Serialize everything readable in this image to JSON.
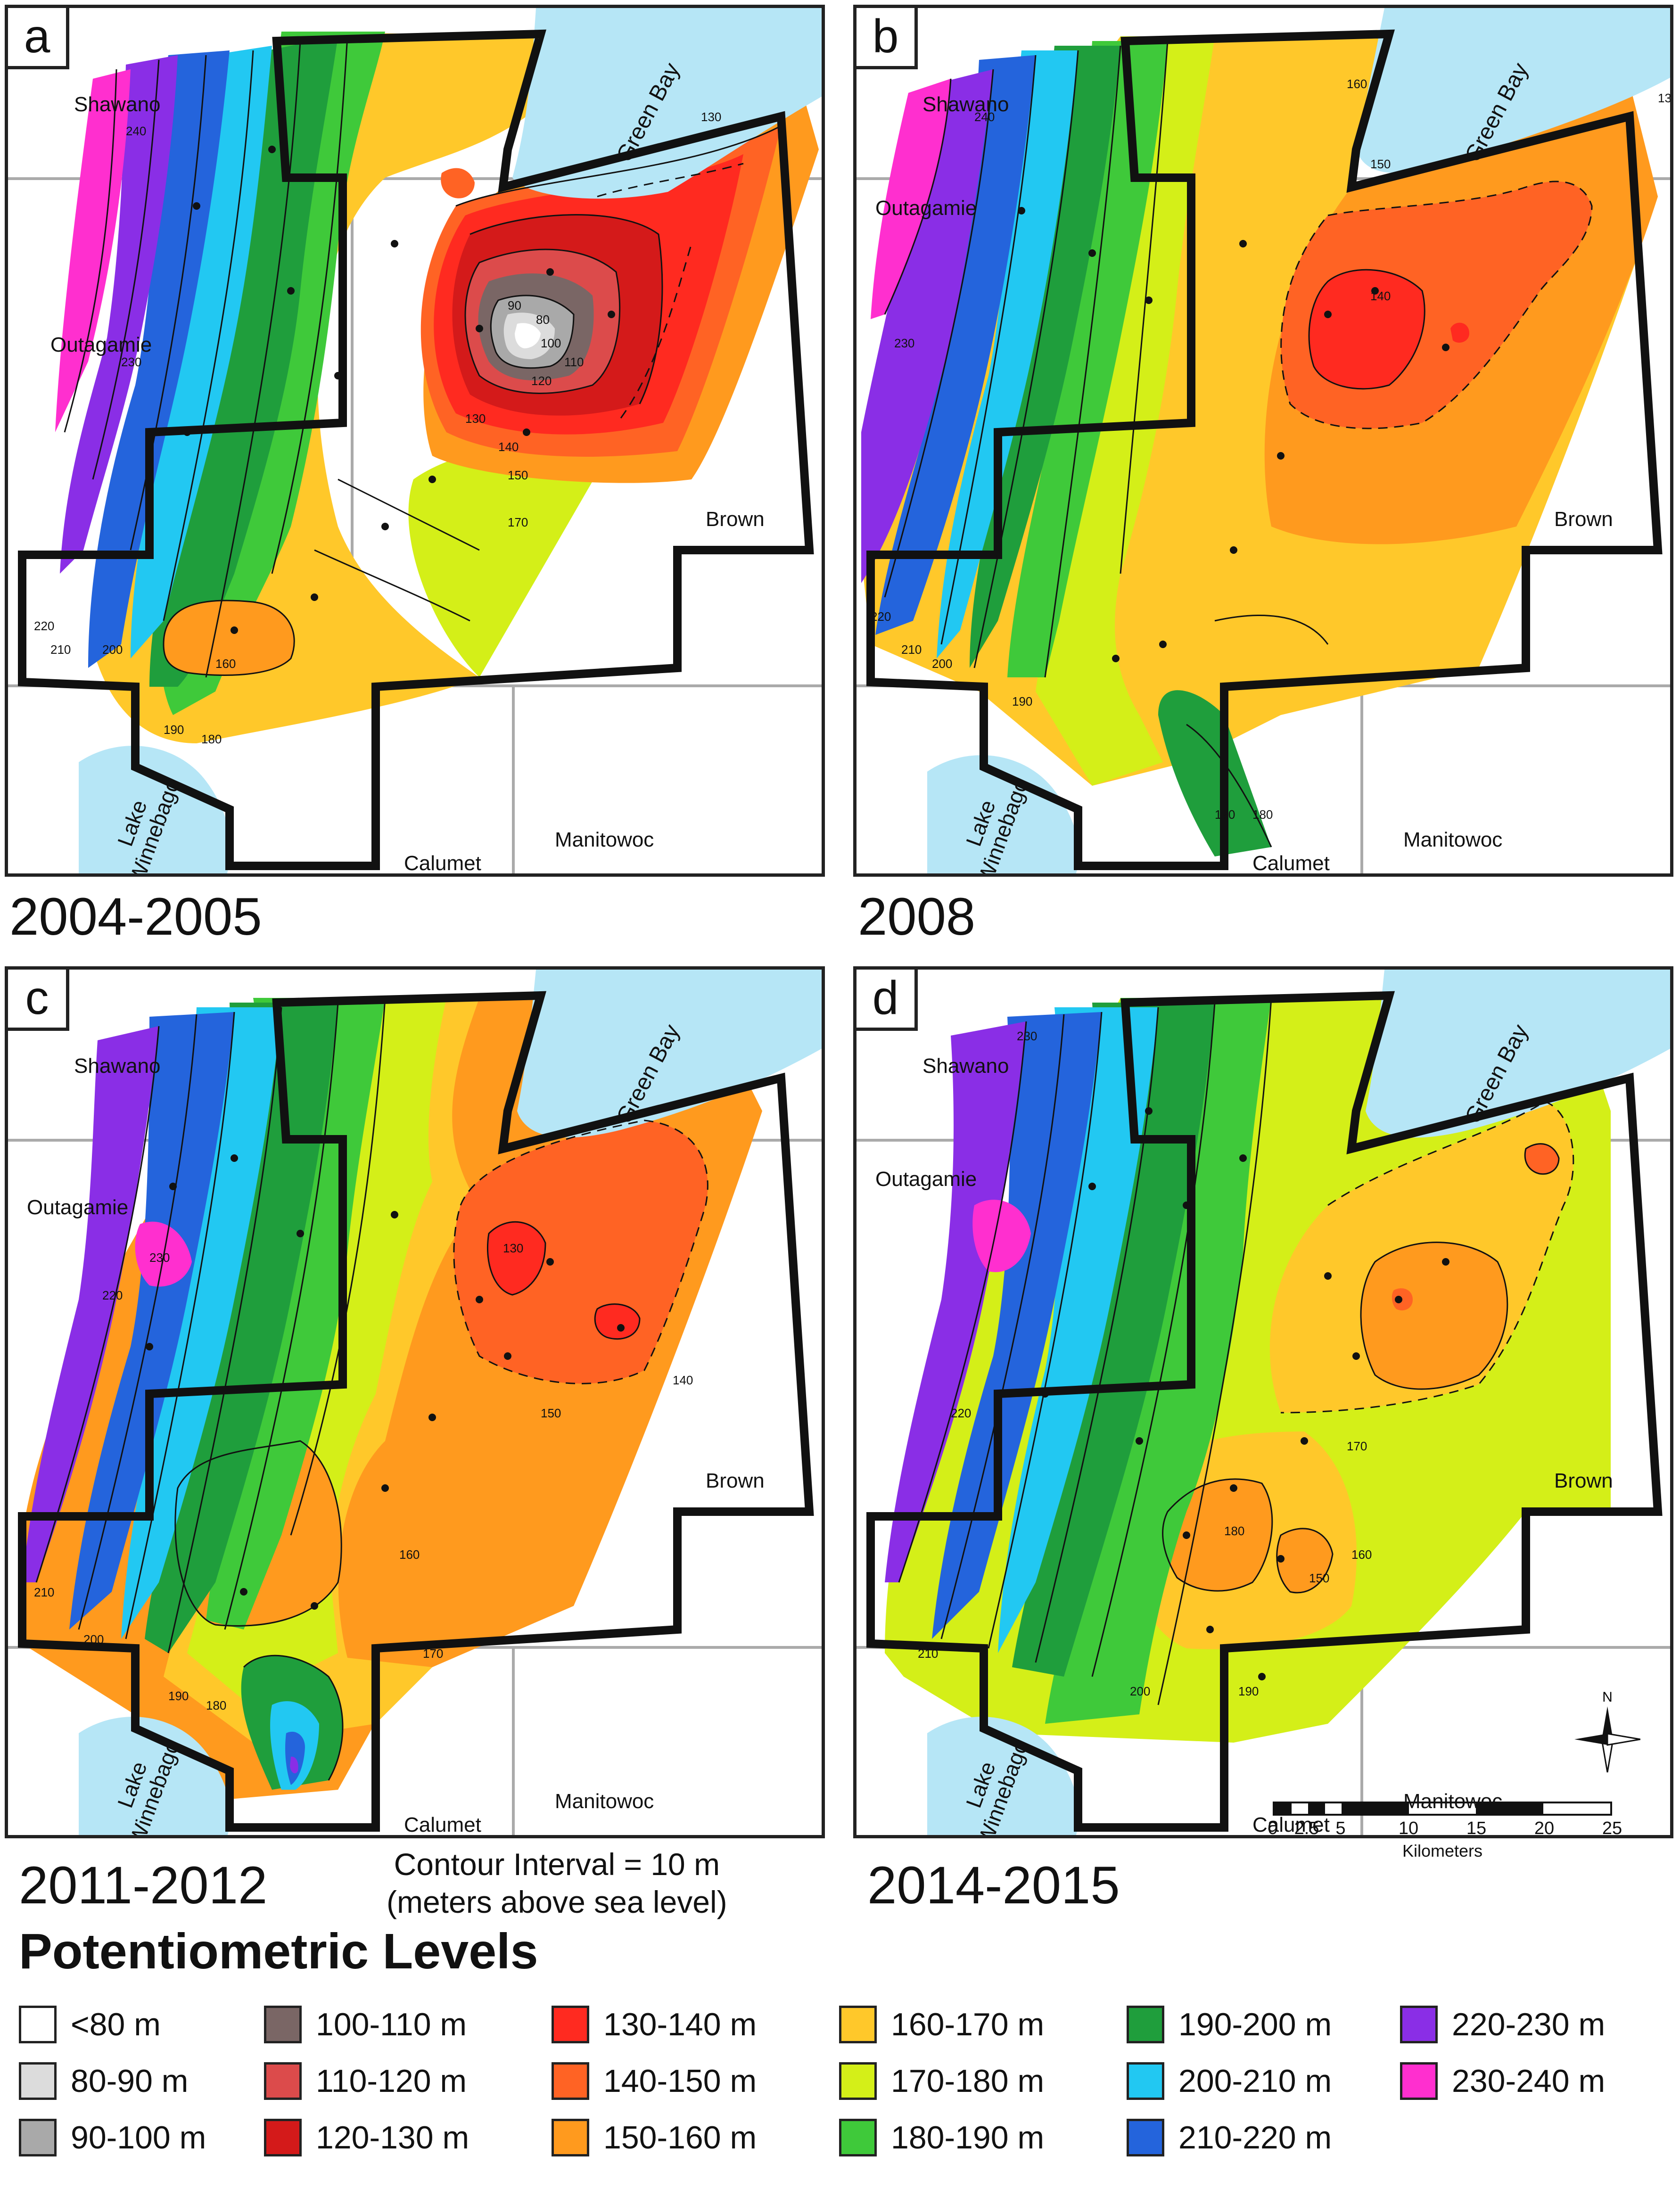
{
  "panels": [
    {
      "letter": "a",
      "title": "2004-2005"
    },
    {
      "letter": "b",
      "title": "2008"
    },
    {
      "letter": "c",
      "title": "2011-2012"
    },
    {
      "letter": "d",
      "title": "2014-2015"
    }
  ],
  "counties": {
    "shawano": "Shawano",
    "outagamie": "Outagamie",
    "brown": "Brown",
    "calumet": "Calumet",
    "manitowoc": "Manitowoc"
  },
  "water": {
    "green_bay": "Green Bay",
    "lake_line1": "Lake",
    "lake_line2": "Winnebago"
  },
  "contour_interval": {
    "line1": "Contour Interval = 10 m",
    "line2": "(meters above sea level)"
  },
  "scale": {
    "ticks": [
      "0",
      "2.5",
      "5",
      "10",
      "15",
      "20",
      "25"
    ],
    "unit": "Kilometers"
  },
  "north_label": "N",
  "legend": {
    "title": "Potentiometric Levels",
    "items": [
      {
        "label": "<80 m",
        "color": "#ffffff"
      },
      {
        "label": "80-90 m",
        "color": "#dcdcdc"
      },
      {
        "label": "90-100 m",
        "color": "#a9a9a9"
      },
      {
        "label": "100-110 m",
        "color": "#7a6665"
      },
      {
        "label": "110-120 m",
        "color": "#dc4b4b"
      },
      {
        "label": "120-130 m",
        "color": "#d41a1a"
      },
      {
        "label": "130-140 m",
        "color": "#ff2a20"
      },
      {
        "label": "140-150 m",
        "color": "#ff6324"
      },
      {
        "label": "150-160 m",
        "color": "#ff9a1e"
      },
      {
        "label": "160-170 m",
        "color": "#ffc82a"
      },
      {
        "label": "170-180 m",
        "color": "#d4ef18"
      },
      {
        "label": "180-190 m",
        "color": "#3fc93a"
      },
      {
        "label": "190-200 m",
        "color": "#1f9e3c"
      },
      {
        "label": "200-210 m",
        "color": "#22c8f2"
      },
      {
        "label": "210-220 m",
        "color": "#2464dc"
      },
      {
        "label": "220-230 m",
        "color": "#8a2ee6"
      },
      {
        "label": "230-240 m",
        "color": "#ff2fcf"
      }
    ]
  },
  "contour_labels": {
    "a": [
      "220",
      "210",
      "200",
      "190",
      "180",
      "160",
      "150",
      "140",
      "130",
      "120",
      "110",
      "100",
      "90",
      "80",
      "170",
      "240",
      "230",
      "130"
    ],
    "b": [
      "240",
      "230",
      "220",
      "210",
      "200",
      "190",
      "180",
      "170",
      "160",
      "150",
      "140",
      "130"
    ],
    "c": [
      "230",
      "220",
      "210",
      "200",
      "190",
      "180",
      "170",
      "160",
      "150",
      "140",
      "130"
    ],
    "d": [
      "230",
      "220",
      "210",
      "200",
      "190",
      "180",
      "170",
      "160",
      "150"
    ]
  }
}
